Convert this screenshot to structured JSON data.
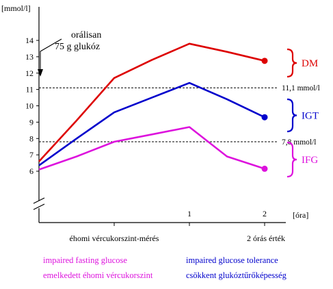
{
  "chart_data": {
    "type": "line",
    "ylabel": "[mmol/l]",
    "xlabel": "[óra]",
    "ylim": [
      5,
      15
    ],
    "yticks": [
      6,
      7,
      8,
      9,
      10,
      11,
      12,
      13,
      14
    ],
    "xlim": [
      -1,
      2.35
    ],
    "xticks": [
      {
        "x": 0,
        "label": ""
      },
      {
        "x": 1,
        "label": "1"
      },
      {
        "x": 2,
        "label": "2"
      }
    ],
    "x_bottom_labels": [
      {
        "x": 0,
        "text": "éhomi vércukorszint-mérés"
      },
      {
        "x": 2,
        "text": "2 órás érték"
      }
    ],
    "grid": false,
    "axis_break": true,
    "reference_lines": [
      {
        "y": 11.1,
        "label": "11,1 mmol/l"
      },
      {
        "y": 7.8,
        "label": "7,8 mmol/l"
      }
    ],
    "annotation": {
      "line1": "orálisan",
      "line2": "75 g glukóz"
    },
    "series": [
      {
        "group": "DM",
        "color": "#dd0000",
        "x": [
          -1,
          -0.5,
          0,
          0.5,
          1,
          1.5,
          2
        ],
        "y": [
          6.6,
          9.1,
          11.7,
          12.8,
          13.8,
          13.3,
          12.75
        ]
      },
      {
        "group": "IGT",
        "color": "#0000cc",
        "x": [
          -1,
          -0.5,
          0,
          0.5,
          1,
          1.5,
          2
        ],
        "y": [
          6.35,
          8.0,
          9.6,
          10.5,
          11.4,
          10.4,
          9.3
        ]
      },
      {
        "group": "IFG",
        "color": "#dd11dd",
        "x": [
          -1,
          -0.5,
          0,
          0.5,
          1,
          1.5,
          2
        ],
        "y": [
          6.1,
          6.9,
          7.8,
          8.25,
          8.7,
          6.9,
          6.15
        ]
      }
    ],
    "group_labels": [
      {
        "text": "DM",
        "color": "#dd0000"
      },
      {
        "text": "IGT",
        "color": "#0000cc"
      },
      {
        "text": "IFG",
        "color": "#dd11dd"
      }
    ],
    "legend": [
      {
        "line1": "impaired fasting glucose",
        "line2": "emelkedett éhomi vércukorszint",
        "color": "#dd11dd"
      },
      {
        "line1": "impaired glucose tolerance",
        "line2": "csökkent glukóztűrőképesség",
        "color": "#0000cc"
      }
    ],
    "legend_position": "bottom"
  }
}
